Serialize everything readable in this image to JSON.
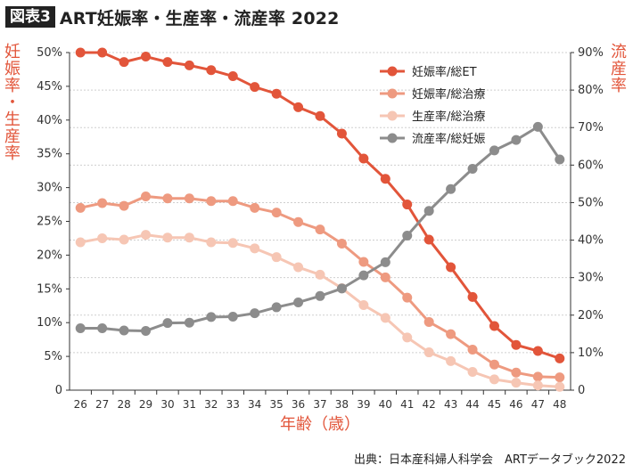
{
  "header": {
    "badge": "図表3",
    "title": "ART妊娠率・生産率・流産率 2022"
  },
  "source": "出典：日本産科婦人科学会　ARTデータブック2022",
  "chart_data": {
    "type": "line",
    "title": "ART妊娠率・生産率・流産率 2022",
    "xlabel": "年齢（歳）",
    "ylabel_left": "妊娠率・生産率",
    "ylabel_right": "流産率",
    "x": [
      26,
      27,
      28,
      29,
      30,
      31,
      32,
      33,
      34,
      35,
      36,
      37,
      38,
      39,
      40,
      41,
      42,
      43,
      44,
      45,
      46,
      47,
      48
    ],
    "ylim_left": [
      0,
      50
    ],
    "ylim_right": [
      0,
      90
    ],
    "yticks_left": [
      "0",
      "5%",
      "10%",
      "15%",
      "20%",
      "25%",
      "30%",
      "35%",
      "40%",
      "45%",
      "50%"
    ],
    "yticks_right": [
      "0",
      "10%",
      "20%",
      "30%",
      "40%",
      "50%",
      "60%",
      "70%",
      "80%",
      "90%"
    ],
    "grid": true,
    "legend_position": "top-right",
    "series": [
      {
        "name": "妊娠率/総ET",
        "axis": "left",
        "color": "#e2553a",
        "values": [
          50.0,
          50.0,
          48.6,
          49.4,
          48.6,
          48.1,
          47.4,
          46.5,
          44.9,
          43.9,
          41.9,
          40.6,
          38.0,
          34.3,
          31.3,
          27.5,
          22.3,
          18.2,
          13.8,
          9.5,
          6.7,
          5.8,
          4.7
        ]
      },
      {
        "name": "妊娠率/総治療",
        "axis": "left",
        "color": "#ee9a80",
        "values": [
          27.0,
          27.7,
          27.3,
          28.7,
          28.4,
          28.4,
          28.0,
          28.0,
          27.0,
          26.3,
          24.9,
          23.8,
          21.7,
          19.0,
          16.7,
          13.7,
          10.1,
          8.3,
          6.0,
          3.8,
          2.6,
          2.0,
          1.9
        ]
      },
      {
        "name": "生産率/総治療",
        "axis": "left",
        "color": "#f6c6b4",
        "values": [
          21.9,
          22.5,
          22.3,
          23.0,
          22.6,
          22.6,
          21.9,
          21.8,
          21.0,
          19.7,
          18.2,
          17.1,
          15.1,
          12.6,
          10.7,
          7.8,
          5.6,
          4.3,
          2.7,
          1.6,
          1.1,
          0.7,
          0.5
        ]
      },
      {
        "name": "流産率/総妊娠",
        "axis": "right",
        "color": "#8c8c8c",
        "values": [
          16.5,
          16.5,
          15.9,
          15.8,
          17.9,
          18.0,
          19.5,
          19.6,
          20.5,
          22.1,
          23.4,
          25.1,
          27.1,
          30.6,
          34.1,
          41.2,
          47.8,
          53.6,
          59.0,
          63.9,
          66.7,
          70.2,
          61.5
        ]
      }
    ]
  }
}
